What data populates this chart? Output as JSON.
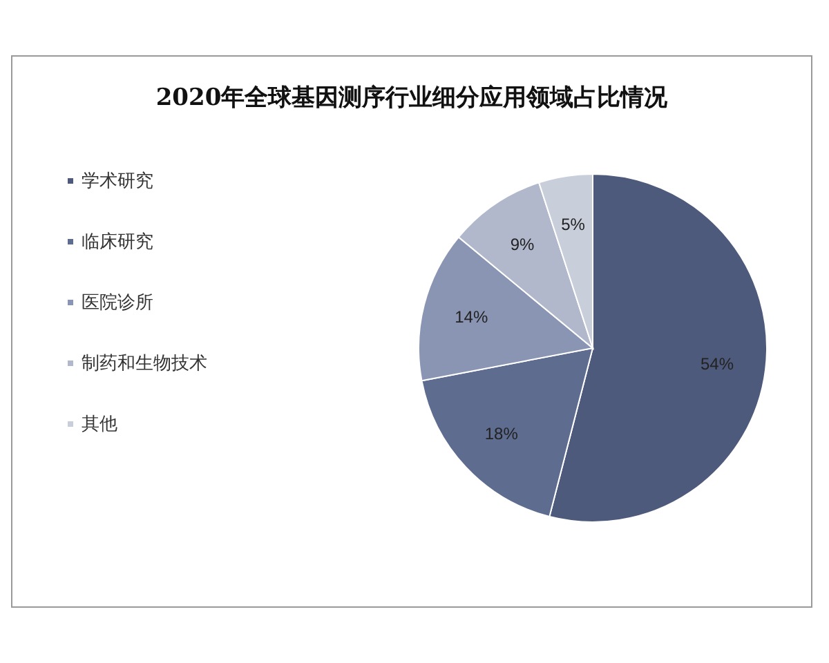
{
  "chart_data": {
    "type": "pie",
    "title": "2020年全球基因测序行业细分应用领域占比情况",
    "categories": [
      "学术研究",
      "临床研究",
      "医院诊所",
      "制药和生物技术",
      "其他"
    ],
    "values": [
      54,
      18,
      14,
      9,
      5
    ],
    "colors": [
      "#4e5a7b",
      "#5e6c90",
      "#8a95b3",
      "#b1b8cc",
      "#c9cedb"
    ],
    "value_labels": [
      "54%",
      "18%",
      "14%",
      "9%",
      "5%"
    ],
    "legend": "left"
  }
}
